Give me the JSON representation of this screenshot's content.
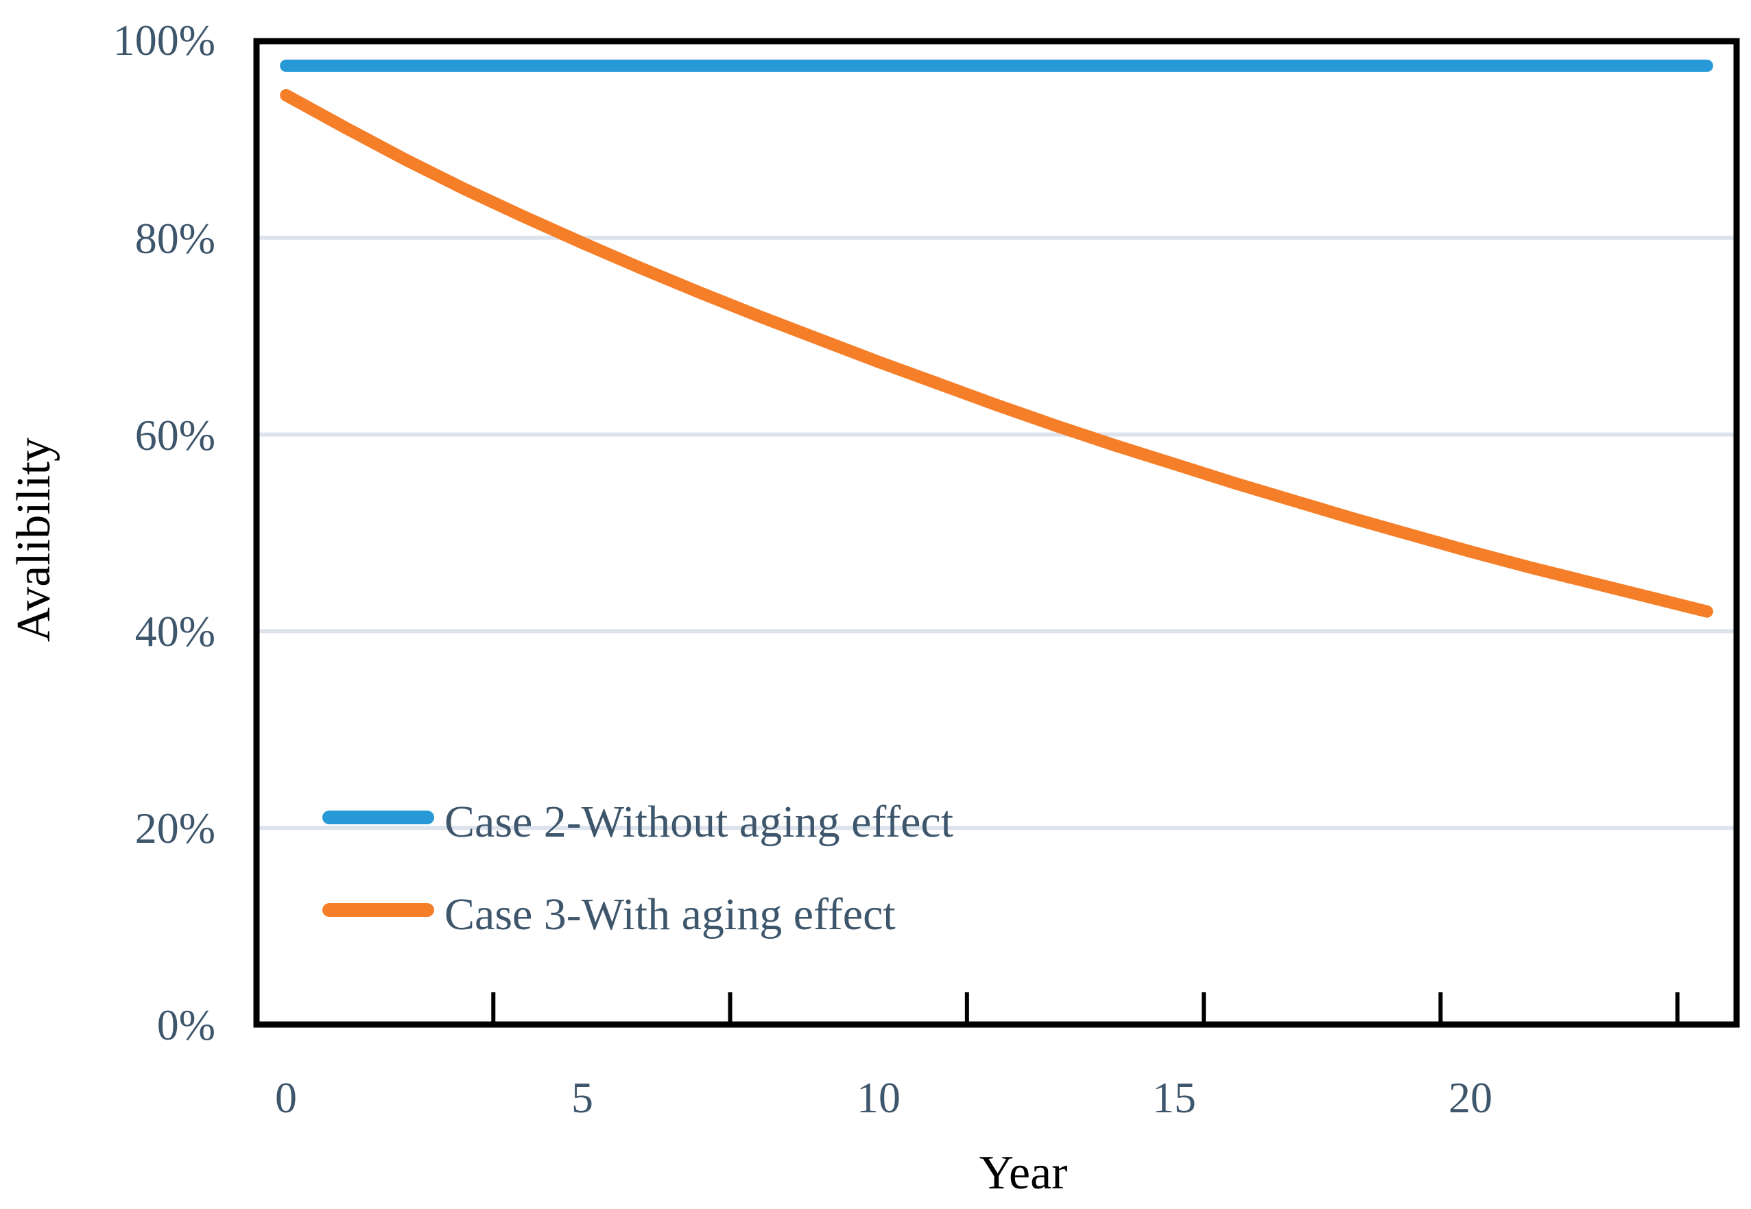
{
  "chart_data": {
    "type": "line",
    "title": "",
    "xlabel": "Year",
    "ylabel": "Avalibility",
    "x": [
      0,
      1,
      2,
      3,
      4,
      5,
      6,
      7,
      8,
      9,
      10,
      11,
      12,
      13,
      14,
      15,
      16,
      17,
      18,
      19,
      20,
      21,
      22,
      23,
      24
    ],
    "x_tick_labels": [
      "0",
      "5",
      "10",
      "15",
      "20"
    ],
    "x_label_positions": [
      0,
      5,
      10,
      15,
      20
    ],
    "y_tick_labels": [
      "0%",
      "20%",
      "40%",
      "60%",
      "80%",
      "100%"
    ],
    "gridline_percents": [
      20,
      40,
      60,
      80
    ],
    "ylim": [
      0,
      100
    ],
    "xlim": [
      0,
      24
    ],
    "grid": "horizontal-only",
    "legend_position": "inside-lower-left",
    "colors": {
      "axis_text": "#3E566C",
      "axis_line": "#000000",
      "gridline": "#DDE3EC",
      "series_blue": "#2699D6",
      "series_orange": "#F57E28"
    },
    "series": [
      {
        "name": "Case 2-Without aging effect",
        "color": "#2699D6",
        "values": [
          97.5,
          97.5,
          97.5,
          97.5,
          97.5,
          97.5,
          97.5,
          97.5,
          97.5,
          97.5,
          97.5,
          97.5,
          97.5,
          97.5,
          97.5,
          97.5,
          97.5,
          97.5,
          97.5,
          97.5,
          97.5,
          97.5,
          97.5,
          97.5,
          97.5
        ]
      },
      {
        "name": "Case 3-With aging effect",
        "color": "#F57E28",
        "values": [
          94.5,
          91.2,
          88.0,
          85.0,
          82.2,
          79.5,
          76.9,
          74.4,
          72.0,
          69.7,
          67.4,
          65.2,
          63.0,
          60.9,
          58.9,
          57.0,
          55.1,
          53.3,
          51.5,
          49.8,
          48.1,
          46.5,
          45.0,
          43.5,
          42.0
        ]
      }
    ]
  }
}
